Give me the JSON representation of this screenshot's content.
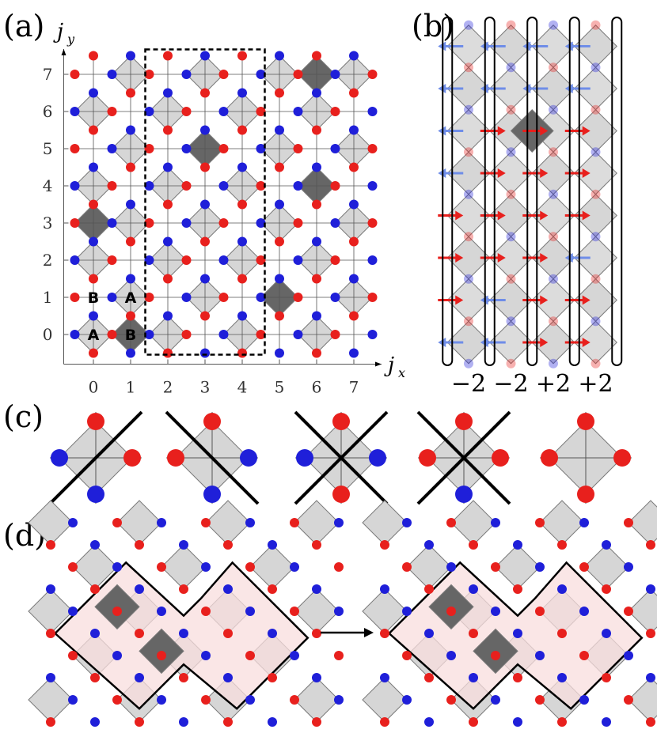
{
  "panels": {
    "a": {
      "label": "(a)",
      "xlabel": "j",
      "xlabel_sub": "x",
      "ylabel": "j",
      "ylabel_sub": "y",
      "x_ticks": [
        "0",
        "1",
        "2",
        "3",
        "4",
        "5",
        "6",
        "7"
      ],
      "y_ticks": [
        "0",
        "1",
        "2",
        "3",
        "4",
        "5",
        "6",
        "7"
      ],
      "sublattice_labels": [
        {
          "text": "A",
          "x": 0,
          "y": 0
        },
        {
          "text": "B",
          "x": 1,
          "y": 0
        },
        {
          "text": "B",
          "x": 0,
          "y": 1
        },
        {
          "text": "A",
          "x": 1,
          "y": 1
        }
      ],
      "dark_plaquettes": [
        [
          0,
          3
        ],
        [
          1,
          0
        ],
        [
          3,
          5
        ],
        [
          5,
          1
        ],
        [
          6,
          4
        ],
        [
          6,
          7
        ]
      ],
      "dashed_box_columns": [
        2,
        3,
        4
      ]
    },
    "b": {
      "label": "(b)",
      "column_labels": [
        "−2",
        "−2",
        "+2",
        "+2"
      ]
    },
    "c": {
      "label": "(c)"
    },
    "d": {
      "label": "(d)"
    }
  },
  "colors": {
    "plaquette": "#d6d6d6",
    "plaquette_dark": "#666666",
    "red": "#e8201d",
    "blue": "#1f1fd9",
    "pink": "#f8dede"
  }
}
